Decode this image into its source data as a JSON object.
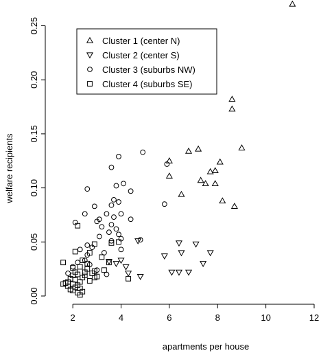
{
  "chart_data": {
    "type": "scatter",
    "title": "",
    "xlabel": "apartments per house",
    "ylabel": "welfare recipients",
    "xlim": [
      1.2,
      12
    ],
    "ylim": [
      0,
      0.27
    ],
    "xticks": [
      2,
      4,
      6,
      8,
      10,
      12
    ],
    "yticks": [
      0.0,
      0.05,
      0.1,
      0.15,
      0.2,
      0.25
    ],
    "xtick_labels": [
      "2",
      "4",
      "6",
      "8",
      "10",
      "12"
    ],
    "ytick_labels": [
      "0.00",
      "0.05",
      "0.10",
      "0.15",
      "0.20",
      "0.25"
    ],
    "grid": false,
    "legend_position": "top-left",
    "series": [
      {
        "name": "Cluster 1 (center N)",
        "marker": "triangle-up",
        "points": [
          [
            11.1,
            0.27
          ],
          [
            8.6,
            0.182
          ],
          [
            8.6,
            0.173
          ],
          [
            9.0,
            0.137
          ],
          [
            7.2,
            0.136
          ],
          [
            6.8,
            0.134
          ],
          [
            6.0,
            0.125
          ],
          [
            8.1,
            0.124
          ],
          [
            7.9,
            0.116
          ],
          [
            7.7,
            0.115
          ],
          [
            6.0,
            0.111
          ],
          [
            7.3,
            0.107
          ],
          [
            7.5,
            0.104
          ],
          [
            7.9,
            0.104
          ],
          [
            6.5,
            0.094
          ],
          [
            8.2,
            0.088
          ],
          [
            8.7,
            0.083
          ]
        ]
      },
      {
        "name": "Cluster 2 (center S)",
        "marker": "triangle-down",
        "points": [
          [
            4.7,
            0.051
          ],
          [
            6.4,
            0.049
          ],
          [
            7.1,
            0.048
          ],
          [
            7.7,
            0.04
          ],
          [
            6.5,
            0.04
          ],
          [
            5.8,
            0.037
          ],
          [
            4.0,
            0.033
          ],
          [
            7.4,
            0.03
          ],
          [
            4.2,
            0.027
          ],
          [
            6.1,
            0.022
          ],
          [
            6.4,
            0.022
          ],
          [
            6.8,
            0.022
          ],
          [
            4.3,
            0.021
          ],
          [
            4.8,
            0.018
          ],
          [
            3.5,
            0.032
          ],
          [
            3.8,
            0.03
          ]
        ]
      },
      {
        "name": "Cluster 3 (suburbs NW)",
        "marker": "circle",
        "points": [
          [
            3.9,
            0.129
          ],
          [
            4.9,
            0.133
          ],
          [
            5.9,
            0.122
          ],
          [
            3.6,
            0.119
          ],
          [
            4.1,
            0.104
          ],
          [
            3.8,
            0.102
          ],
          [
            4.4,
            0.097
          ],
          [
            2.6,
            0.099
          ],
          [
            5.8,
            0.085
          ],
          [
            3.7,
            0.089
          ],
          [
            3.9,
            0.087
          ],
          [
            3.6,
            0.084
          ],
          [
            2.9,
            0.083
          ],
          [
            4.0,
            0.076
          ],
          [
            3.4,
            0.076
          ],
          [
            3.7,
            0.073
          ],
          [
            2.5,
            0.076
          ],
          [
            3.1,
            0.071
          ],
          [
            3.0,
            0.069
          ],
          [
            4.4,
            0.071
          ],
          [
            2.1,
            0.068
          ],
          [
            3.6,
            0.066
          ],
          [
            3.2,
            0.064
          ],
          [
            3.8,
            0.062
          ],
          [
            3.5,
            0.059
          ],
          [
            3.9,
            0.057
          ],
          [
            3.1,
            0.055
          ],
          [
            4.8,
            0.052
          ],
          [
            4.0,
            0.053
          ],
          [
            3.6,
            0.051
          ],
          [
            2.6,
            0.047
          ],
          [
            2.8,
            0.045
          ],
          [
            4.0,
            0.043
          ],
          [
            2.3,
            0.043
          ],
          [
            3.3,
            0.04
          ],
          [
            2.6,
            0.038
          ],
          [
            2.0,
            0.027
          ],
          [
            2.5,
            0.033
          ],
          [
            3.0,
            0.024
          ],
          [
            3.4,
            0.02
          ],
          [
            2.7,
            0.029
          ],
          [
            2.2,
            0.031
          ],
          [
            1.8,
            0.021
          ]
        ]
      },
      {
        "name": "Cluster 4 (suburbs SE)",
        "marker": "square",
        "points": [
          [
            2.2,
            0.065
          ],
          [
            2.9,
            0.048
          ],
          [
            3.6,
            0.049
          ],
          [
            3.9,
            0.05
          ],
          [
            2.1,
            0.041
          ],
          [
            2.7,
            0.04
          ],
          [
            3.2,
            0.036
          ],
          [
            3.5,
            0.031
          ],
          [
            2.4,
            0.033
          ],
          [
            1.6,
            0.031
          ],
          [
            2.6,
            0.03
          ],
          [
            2.3,
            0.027
          ],
          [
            2.0,
            0.026
          ],
          [
            2.6,
            0.025
          ],
          [
            2.9,
            0.023
          ],
          [
            3.3,
            0.024
          ],
          [
            2.5,
            0.022
          ],
          [
            2.8,
            0.021
          ],
          [
            2.2,
            0.02
          ],
          [
            2.0,
            0.019
          ],
          [
            3.0,
            0.018
          ],
          [
            2.4,
            0.017
          ],
          [
            1.9,
            0.016
          ],
          [
            2.1,
            0.015
          ],
          [
            4.3,
            0.016
          ],
          [
            2.7,
            0.014
          ],
          [
            2.3,
            0.013
          ],
          [
            1.7,
            0.012
          ],
          [
            2.0,
            0.011
          ],
          [
            2.2,
            0.01
          ],
          [
            1.8,
            0.009
          ],
          [
            2.1,
            0.008
          ],
          [
            2.3,
            0.007
          ],
          [
            1.9,
            0.006
          ],
          [
            2.0,
            0.005
          ],
          [
            2.4,
            0.004
          ],
          [
            2.2,
            0.003
          ],
          [
            2.3,
            0.001
          ],
          [
            1.6,
            0.011
          ],
          [
            1.8,
            0.013
          ],
          [
            2.9,
            0.017
          ],
          [
            2.5,
            0.019
          ],
          [
            2.1,
            0.022
          ]
        ]
      }
    ]
  }
}
